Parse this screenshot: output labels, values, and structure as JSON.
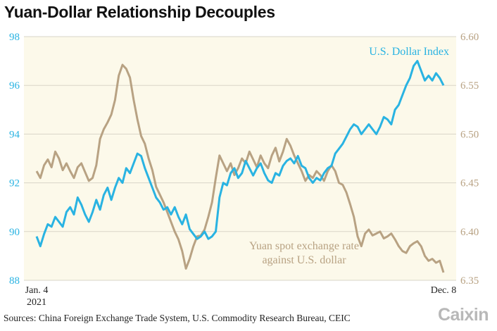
{
  "title": "Yuan-Dollar Relationship Decouples",
  "source": "Sources: China Foreign Exchange Trade System, U.S. Commodity Research Bureau, CEIC",
  "logo": "Caixin",
  "colors": {
    "background": "#fcf9ea",
    "dollar": "#29b3e2",
    "yuan": "#b8a283",
    "grid": "#d9d6c8"
  },
  "chart_data": {
    "type": "line",
    "x_labels": {
      "start": "Jan. 4",
      "start_year": "2021",
      "end": "Dec. 8"
    },
    "left_axis": {
      "min": 88,
      "max": 98,
      "ticks": [
        "98",
        "96",
        "94",
        "92",
        "90",
        "88"
      ]
    },
    "right_axis": {
      "min": 6.35,
      "max": 6.6,
      "ticks": [
        "6.60",
        "6.55",
        "6.50",
        "6.45",
        "6.40",
        "6.35"
      ]
    },
    "grid": true,
    "series": [
      {
        "name": "U.S. Dollar Index",
        "axis": "left",
        "values": [
          89.8,
          89.4,
          89.9,
          90.3,
          90.2,
          90.6,
          90.4,
          90.2,
          90.8,
          91.0,
          90.7,
          91.4,
          91.1,
          90.7,
          90.4,
          90.8,
          91.3,
          90.9,
          91.5,
          91.8,
          91.3,
          91.8,
          92.2,
          92.0,
          92.6,
          92.4,
          92.8,
          93.2,
          93.1,
          92.6,
          92.2,
          91.8,
          91.4,
          91.2,
          90.9,
          91.0,
          90.7,
          91.0,
          90.6,
          90.3,
          90.7,
          90.1,
          89.9,
          89.7,
          89.8,
          90.0,
          89.7,
          89.8,
          90.0,
          91.4,
          92.0,
          91.9,
          92.4,
          92.6,
          92.2,
          92.4,
          92.9,
          92.6,
          92.3,
          92.6,
          92.8,
          92.4,
          92.1,
          92.0,
          92.4,
          92.3,
          92.7,
          92.9,
          93.0,
          92.8,
          93.1,
          92.7,
          92.6,
          92.2,
          92.0,
          92.2,
          92.1,
          92.4,
          92.6,
          92.7,
          93.2,
          93.4,
          93.6,
          93.9,
          94.2,
          94.4,
          94.3,
          94.0,
          94.2,
          94.4,
          94.2,
          94.0,
          94.3,
          94.7,
          94.6,
          94.4,
          95.0,
          95.2,
          95.6,
          96.0,
          96.3,
          96.8,
          97.0,
          96.6,
          96.2,
          96.4,
          96.2,
          96.5,
          96.3,
          96.0
        ]
      },
      {
        "name": "Yuan spot exchange rate against U.S. dollar",
        "axis": "right",
        "values": [
          6.462,
          6.455,
          6.468,
          6.474,
          6.466,
          6.482,
          6.475,
          6.463,
          6.47,
          6.462,
          6.455,
          6.466,
          6.47,
          6.461,
          6.452,
          6.455,
          6.468,
          6.495,
          6.505,
          6.512,
          6.52,
          6.535,
          6.56,
          6.571,
          6.567,
          6.558,
          6.535,
          6.515,
          6.498,
          6.49,
          6.475,
          6.463,
          6.446,
          6.438,
          6.43,
          6.42,
          6.41,
          6.4,
          6.392,
          6.38,
          6.362,
          6.372,
          6.385,
          6.395,
          6.396,
          6.402,
          6.415,
          6.43,
          6.455,
          6.478,
          6.47,
          6.462,
          6.47,
          6.458,
          6.465,
          6.475,
          6.47,
          6.482,
          6.474,
          6.466,
          6.478,
          6.47,
          6.465,
          6.478,
          6.486,
          6.472,
          6.482,
          6.495,
          6.488,
          6.478,
          6.47,
          6.462,
          6.452,
          6.458,
          6.455,
          6.462,
          6.458,
          6.452,
          6.462,
          6.468,
          6.462,
          6.45,
          6.448,
          6.44,
          6.428,
          6.415,
          6.395,
          6.385,
          6.398,
          6.402,
          6.396,
          6.398,
          6.4,
          6.393,
          6.395,
          6.398,
          6.392,
          6.385,
          6.38,
          6.378,
          6.385,
          6.388,
          6.39,
          6.385,
          6.375,
          6.37,
          6.372,
          6.368,
          6.37,
          6.358
        ]
      }
    ],
    "annotations": {
      "dollar_label": "U.S. Dollar Index",
      "yuan_label_line1": "Yuan spot exchange rate",
      "yuan_label_line2": "against U.S. dollar"
    }
  }
}
